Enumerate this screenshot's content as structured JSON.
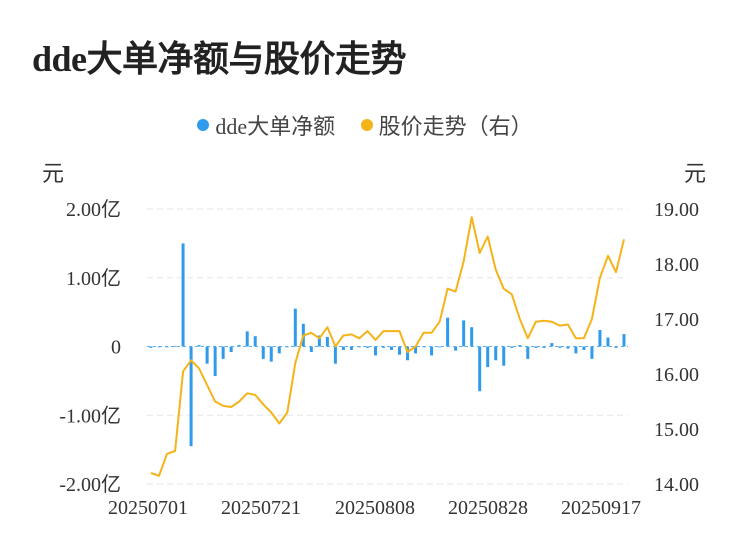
{
  "title": "dde大单净额与股价走势",
  "legend": {
    "items": [
      {
        "label": "dde大单净额",
        "color": "#2f9bea"
      },
      {
        "label": "股价走势（右）",
        "color": "#f5b31a"
      }
    ]
  },
  "units": {
    "left": "元",
    "right": "元"
  },
  "chart_data": {
    "type": "bar+line",
    "left_axis": {
      "min": -2.0,
      "max": 2.0,
      "ticks": [
        {
          "value": 2.0,
          "label": "2.00亿"
        },
        {
          "value": 1.0,
          "label": "1.00亿"
        },
        {
          "value": 0,
          "label": "0"
        },
        {
          "value": -1.0,
          "label": "-1.00亿"
        },
        {
          "value": -2.0,
          "label": "-2.00亿"
        }
      ]
    },
    "right_axis": {
      "min": 14.0,
      "max": 19.0,
      "ticks": [
        {
          "value": 19.0,
          "label": "19.00"
        },
        {
          "value": 18.0,
          "label": "18.00"
        },
        {
          "value": 17.0,
          "label": "17.00"
        },
        {
          "value": 16.0,
          "label": "16.00"
        },
        {
          "value": 15.0,
          "label": "15.00"
        },
        {
          "value": 14.0,
          "label": "14.00"
        }
      ]
    },
    "x_ticks": [
      {
        "index": 0,
        "label": "20250701"
      },
      {
        "index": 14,
        "label": "20250721"
      },
      {
        "index": 28,
        "label": "20250808"
      },
      {
        "index": 42,
        "label": "20250828"
      },
      {
        "index": 56,
        "label": "20250917"
      }
    ],
    "grid": true,
    "legend_position": "top-center",
    "dde_net": [
      -0.02,
      -0.01,
      0.0,
      0.01,
      1.5,
      -1.45,
      0.02,
      -0.25,
      -0.43,
      -0.18,
      -0.08,
      0.02,
      0.22,
      0.15,
      -0.18,
      -0.22,
      -0.1,
      0.0,
      0.55,
      0.33,
      -0.08,
      0.16,
      0.14,
      -0.25,
      -0.05,
      -0.05,
      0.0,
      -0.02,
      -0.13,
      -0.02,
      -0.05,
      -0.12,
      -0.2,
      -0.1,
      0.0,
      -0.13,
      0.0,
      0.42,
      -0.06,
      0.38,
      0.28,
      -0.65,
      -0.3,
      -0.2,
      -0.28,
      -0.02,
      0.02,
      -0.18,
      -0.02,
      -0.02,
      0.05,
      -0.02,
      -0.03,
      -0.1,
      -0.05,
      -0.18,
      0.24,
      0.13,
      -0.02,
      0.18
    ],
    "price": [
      14.2,
      14.15,
      14.55,
      14.6,
      16.05,
      16.25,
      16.1,
      15.8,
      15.5,
      15.42,
      15.4,
      15.5,
      15.65,
      15.62,
      15.45,
      15.3,
      15.1,
      15.3,
      16.2,
      16.7,
      16.75,
      16.65,
      16.85,
      16.5,
      16.7,
      16.72,
      16.65,
      16.78,
      16.62,
      16.78,
      16.78,
      16.78,
      16.4,
      16.5,
      16.75,
      16.75,
      16.95,
      17.55,
      17.5,
      18.05,
      18.85,
      18.2,
      18.5,
      17.9,
      17.55,
      17.45,
      17.0,
      16.65,
      16.95,
      16.97,
      16.95,
      16.88,
      16.9,
      16.65,
      16.65,
      17.0,
      17.75,
      18.15,
      17.85,
      18.45
    ]
  }
}
